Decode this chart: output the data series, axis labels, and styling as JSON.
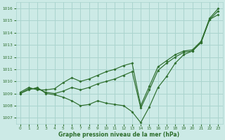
{
  "xlabel": "Graphe pression niveau de la mer (hPa)",
  "bg_color": "#cceae6",
  "grid_color": "#aad4ce",
  "line_color": "#2d6e2d",
  "ylim": [
    1006.5,
    1016.5
  ],
  "xlim": [
    -0.5,
    23.5
  ],
  "yticks": [
    1007,
    1008,
    1009,
    1010,
    1011,
    1012,
    1013,
    1014,
    1015,
    1016
  ],
  "xticks": [
    0,
    1,
    2,
    3,
    4,
    5,
    6,
    7,
    8,
    9,
    10,
    11,
    12,
    13,
    14,
    15,
    16,
    17,
    18,
    19,
    20,
    21,
    22,
    23
  ],
  "series": [
    [
      1009.0,
      1009.3,
      1009.5,
      1009.0,
      1008.9,
      1008.7,
      1008.4,
      1008.0,
      1008.1,
      1008.4,
      1008.2,
      1008.1,
      1008.0,
      1007.5,
      1006.6,
      1007.9,
      1009.5,
      1010.4,
      1011.5,
      1012.2,
      1012.5,
      1013.2,
      1015.1,
      1015.5
    ],
    [
      1009.1,
      1009.5,
      1009.3,
      1009.3,
      1009.4,
      1009.9,
      1010.3,
      1010.0,
      1010.2,
      1010.5,
      1010.8,
      1011.0,
      1011.3,
      1011.5,
      1008.0,
      1009.6,
      1011.2,
      1011.7,
      1012.2,
      1012.5,
      1012.6,
      1013.3,
      1015.2,
      1016.0
    ],
    [
      1009.0,
      1009.4,
      1009.4,
      1009.1,
      1009.0,
      1009.2,
      1009.5,
      1009.3,
      1009.5,
      1009.8,
      1010.0,
      1010.2,
      1010.5,
      1010.8,
      1007.8,
      1009.3,
      1010.9,
      1011.5,
      1012.0,
      1012.4,
      1012.5,
      1013.2,
      1015.1,
      1015.8
    ]
  ]
}
